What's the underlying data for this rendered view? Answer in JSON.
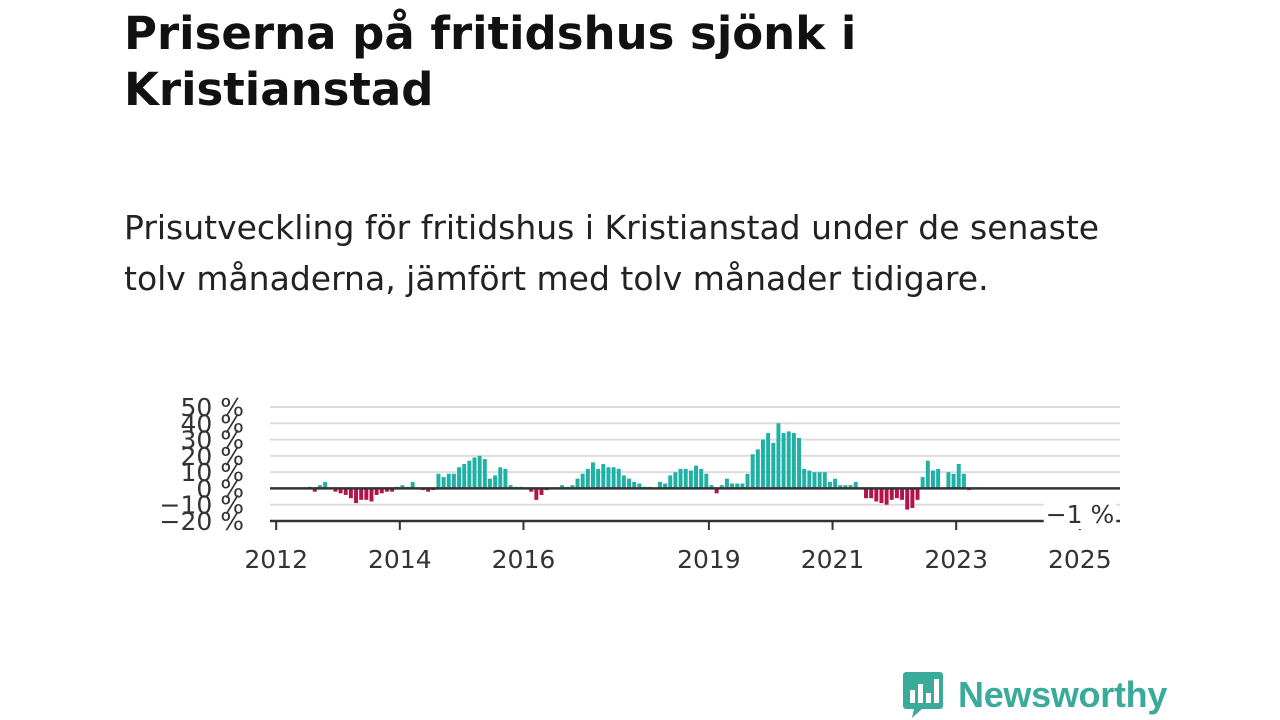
{
  "header": {
    "title": "Priserna på fritidshus sjönk i Kristianstad",
    "subtitle": "Prisutveckling för fritidshus i Kristianstad under de senaste tolv månaderna, jämfört med tolv månader tidigare."
  },
  "brand": {
    "name": "Newsworthy",
    "icon": "bar-chart-speech-bubble-icon",
    "color": "#3aaa9a"
  },
  "colors": {
    "positive": "#1fb1a5",
    "negative": "#b5124b",
    "baseline": "#333333",
    "grid": "#dddddd"
  },
  "chart_data": {
    "type": "bar",
    "title": "",
    "xlabel": "",
    "ylabel": "",
    "ylim": [
      -20,
      50
    ],
    "xlim": [
      2011.9,
      2025.65
    ],
    "y_ticks": [
      -20,
      -10,
      0,
      10,
      20,
      30,
      40,
      50
    ],
    "y_tick_labels": [
      "−20 %",
      "−10 %",
      "0 %",
      "10 %",
      "20 %",
      "30 %",
      "40 %",
      "50 %"
    ],
    "x_ticks": [
      2012,
      2014,
      2016,
      2019,
      2021,
      2023,
      2025
    ],
    "x_tick_labels": [
      "2012",
      "2014",
      "2016",
      "2019",
      "2021",
      "2023",
      "2025"
    ],
    "grid": true,
    "annotation": {
      "text": "−1 %",
      "year": 2025.5,
      "value": -1
    },
    "series": [
      {
        "start_year": 2012.375,
        "step_years": 0.08333,
        "values": [
          0,
          0,
          1,
          -2,
          2,
          4,
          0,
          -2,
          -3,
          -4,
          -6,
          -9,
          -7,
          -7,
          -8,
          -4,
          -3,
          -2,
          -2,
          1,
          2,
          1,
          4,
          0,
          -1,
          -2,
          -1,
          9,
          7,
          9,
          9,
          13,
          15,
          17,
          19,
          20,
          18,
          6,
          8,
          13,
          12,
          2,
          1,
          1,
          0,
          -2,
          -7,
          -4,
          -1,
          0,
          0,
          2,
          1,
          2,
          6,
          9,
          12,
          16,
          12,
          15,
          13,
          13,
          12,
          8,
          6,
          4,
          3,
          1,
          1,
          0,
          4,
          3,
          8,
          10,
          12,
          12,
          11,
          14,
          12,
          9,
          2,
          -3,
          2,
          6,
          3,
          3,
          3,
          9,
          21,
          24,
          30,
          34,
          28,
          40,
          34,
          35,
          34,
          31,
          12,
          11,
          10,
          10,
          10,
          4,
          6,
          2,
          2,
          2,
          4,
          0,
          -6,
          -6,
          -8,
          -9,
          -10,
          -7,
          -6,
          -7,
          -13,
          -12,
          -7,
          7,
          17,
          11,
          12,
          0,
          10,
          9,
          15,
          9,
          -1
        ]
      }
    ]
  }
}
